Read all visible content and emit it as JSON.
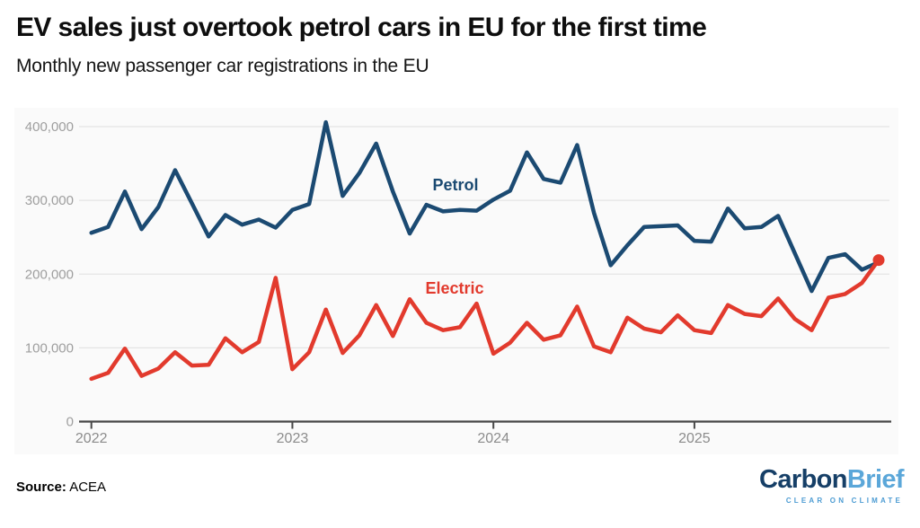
{
  "header": {
    "title": "EV sales just overtook petrol cars in EU for the first time",
    "subtitle": "Monthly new passenger car registrations in the EU"
  },
  "footer": {
    "source_label": "Source:",
    "source_value": "ACEA"
  },
  "logo": {
    "part1": "Carbon",
    "part2": "Brief",
    "tagline": "CLEAR ON CLIMATE"
  },
  "chart_data": {
    "type": "line",
    "title": "EV sales just overtook petrol cars in EU for the first time",
    "subtitle": "Monthly new passenger car registrations in the EU",
    "xlabel": "",
    "ylabel": "",
    "ylim": [
      0,
      425000
    ],
    "grid": true,
    "legend_position": "inline-labels",
    "x": [
      "Jan 2022",
      "Feb 2022",
      "Mar 2022",
      "Apr 2022",
      "May 2022",
      "Jun 2022",
      "Jul 2022",
      "Aug 2022",
      "Sep 2022",
      "Oct 2022",
      "Nov 2022",
      "Dec 2022",
      "Jan 2023",
      "Feb 2023",
      "Mar 2023",
      "Apr 2023",
      "May 2023",
      "Jun 2023",
      "Jul 2023",
      "Aug 2023",
      "Sep 2023",
      "Oct 2023",
      "Nov 2023",
      "Dec 2023",
      "Jan 2024",
      "Feb 2024",
      "Mar 2024",
      "Apr 2024",
      "May 2024",
      "Jun 2024",
      "Jul 2024",
      "Aug 2024",
      "Sep 2024",
      "Oct 2024",
      "Nov 2024",
      "Dec 2024",
      "Jan 2025",
      "Feb 2025",
      "Mar 2025",
      "Apr 2025",
      "May 2025",
      "Jun 2025",
      "Jul 2025",
      "Aug 2025",
      "Sep 2025",
      "Oct 2025",
      "Nov 2025",
      "Dec 2025"
    ],
    "x_ticks": [
      {
        "index": 0,
        "label": "2022"
      },
      {
        "index": 12,
        "label": "2023"
      },
      {
        "index": 24,
        "label": "2024"
      },
      {
        "index": 36,
        "label": "2025"
      }
    ],
    "y_ticks": [
      {
        "value": 0,
        "label": "0"
      },
      {
        "value": 100000,
        "label": "100,000"
      },
      {
        "value": 200000,
        "label": "200,000"
      },
      {
        "value": 300000,
        "label": "300,000"
      },
      {
        "value": 400000,
        "label": "400,000"
      }
    ],
    "series": [
      {
        "name": "Petrol",
        "color": "#1b4a72",
        "end_marker": false,
        "label_pos": {
          "x": 507,
          "y": 212
        },
        "values": [
          256000,
          264000,
          312000,
          261000,
          291000,
          341000,
          296000,
          251000,
          280000,
          267000,
          274000,
          263000,
          287000,
          295000,
          406000,
          306000,
          337000,
          377000,
          312000,
          255000,
          294000,
          285000,
          287000,
          286000,
          301000,
          313000,
          365000,
          329000,
          324000,
          375000,
          283000,
          212000,
          239000,
          264000,
          265000,
          266000,
          245000,
          244000,
          289000,
          262000,
          264000,
          279000,
          228000,
          177000,
          222000,
          227000,
          206000,
          216000
        ]
      },
      {
        "name": "Electric",
        "color": "#e23a2d",
        "end_marker": true,
        "label_pos": {
          "x": 506,
          "y": 327
        },
        "values": [
          58000,
          66000,
          99000,
          62000,
          72000,
          94000,
          76000,
          77000,
          113000,
          94000,
          108000,
          195000,
          71000,
          94000,
          152000,
          93000,
          117000,
          158000,
          116000,
          166000,
          134000,
          124000,
          128000,
          160000,
          92000,
          107000,
          134000,
          111000,
          117000,
          156000,
          102000,
          94000,
          141000,
          126000,
          121000,
          144000,
          124000,
          120000,
          158000,
          146000,
          143000,
          167000,
          139000,
          124000,
          168000,
          173000,
          188000,
          219000
        ]
      }
    ]
  }
}
